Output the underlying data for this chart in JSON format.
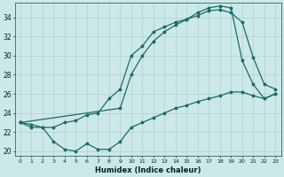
{
  "xlabel": "Humidex (Indice chaleur)",
  "bg_color": "#cde8e8",
  "grid_color": "#b0d0d0",
  "line_color": "#1a6b6b",
  "xlim": [
    -0.5,
    23.5
  ],
  "ylim": [
    19.5,
    35.5
  ],
  "yticks": [
    20,
    22,
    24,
    26,
    28,
    30,
    32,
    34
  ],
  "xticks": [
    0,
    1,
    2,
    3,
    4,
    5,
    6,
    7,
    8,
    9,
    10,
    11,
    12,
    13,
    14,
    15,
    16,
    17,
    18,
    19,
    20,
    21,
    22,
    23
  ],
  "series_min_x": [
    0,
    1,
    2,
    3,
    4,
    5,
    6,
    7,
    8,
    9,
    10,
    11,
    12,
    13,
    14,
    15,
    16,
    17,
    18,
    19,
    20,
    21,
    22,
    23
  ],
  "series_min_y": [
    23,
    22.5,
    22.5,
    21,
    20.2,
    20.0,
    20.8,
    20.2,
    20.2,
    21.0,
    22.5,
    23.0,
    23.5,
    24.0,
    24.5,
    24.8,
    25.2,
    25.5,
    25.8,
    26.2,
    26.2,
    25.8,
    25.5,
    26.0
  ],
  "series_med_x": [
    0,
    1,
    2,
    3,
    4,
    5,
    6,
    7,
    8,
    9,
    10,
    11,
    12,
    13,
    14,
    15,
    16,
    17,
    18,
    19,
    20,
    21,
    22,
    23
  ],
  "series_med_y": [
    23,
    22.8,
    22.5,
    22.5,
    23.0,
    23.2,
    23.8,
    24.0,
    25.5,
    26.5,
    30.0,
    31.0,
    32.5,
    33.0,
    33.5,
    33.8,
    34.2,
    34.7,
    34.8,
    34.5,
    33.5,
    29.8,
    27.0,
    26.5
  ],
  "series_max_x": [
    0,
    9,
    10,
    11,
    12,
    13,
    14,
    15,
    16,
    17,
    18,
    19,
    20,
    21,
    22,
    23
  ],
  "series_max_y": [
    23,
    24.5,
    28.0,
    30.0,
    31.5,
    32.5,
    33.2,
    33.8,
    34.5,
    35.0,
    35.2,
    35.0,
    29.5,
    27.0,
    25.5,
    26.0
  ]
}
